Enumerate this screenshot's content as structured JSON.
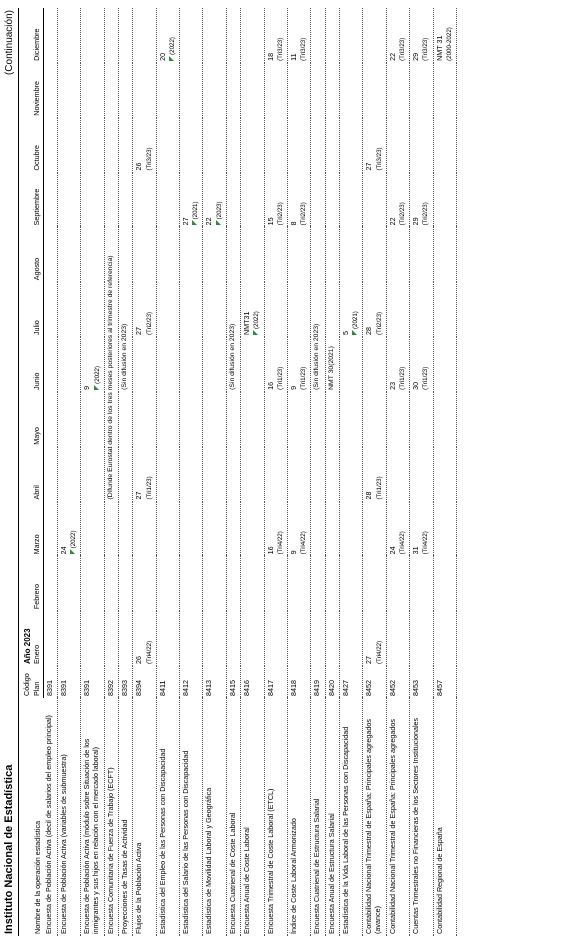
{
  "header": {
    "org": "Instituto Nacional de Estadística",
    "continuation": "(Continuación)"
  },
  "columns": {
    "name": "Nombre de la operación estadística",
    "code_line1": "Código",
    "code_line2": "Plan",
    "year": "Año 2023",
    "months": [
      "Enero",
      "Febrero",
      "Marzo",
      "Abril",
      "Mayo",
      "Junio",
      "Julio",
      "Agosto",
      "Septiembre",
      "Octubre",
      "Noviembre",
      "Diciembre"
    ]
  },
  "rows": [
    {
      "name": "Encuesta de Población Activa (decil de salarios del empleo principal)",
      "code": "8391",
      "cells": {}
    },
    {
      "name": "Encuesta de Población Activa (variables de submuestra)",
      "code": "8391",
      "cells": {
        "2": {
          "v": "24",
          "s": "(2022)",
          "m": true
        }
      }
    },
    {
      "name": "Encuesta de Población Activa (módulo sobre Situación de los inmigrantes y sus hijos en relación con el mercado laboral)",
      "code": "8391",
      "cells": {
        "5": {
          "v": "9",
          "s": "(2022)",
          "m": true
        }
      }
    },
    {
      "name": "Encuesta Comunitaria de Fuerza de Trabajo (ECFT)",
      "code": "8392",
      "span": {
        "from": 3,
        "to": 9,
        "text": "(Difunde Eurostat dentro de los tres meses posteriores al trimestre de referencia)"
      }
    },
    {
      "name": "Proyecciones de Tasas de Actividad",
      "code": "8393",
      "span": {
        "from": 5,
        "to": 6,
        "text": "(Sin difusión en 2023)"
      }
    },
    {
      "name": "Flujos de la Población Activa",
      "code": "8394",
      "cells": {
        "0": {
          "v": "26",
          "s": "(Tri4/22)"
        },
        "3": {
          "v": "27",
          "s": "(Tri1/23)"
        },
        "6": {
          "v": "27",
          "s": "(Tri2/23)"
        },
        "9": {
          "v": "26",
          "s": "(Tri3/23)"
        }
      }
    },
    {
      "name": "Estadística del Empleo de las Personas con Discapacidad",
      "code": "8411",
      "cells": {
        "11": {
          "v": "20",
          "s": "(2022)",
          "m": true
        }
      }
    },
    {
      "name": "Estadística del Salario de las Personas con Discapacidad",
      "code": "8412",
      "cells": {
        "8": {
          "v": "27",
          "s": "(2021)",
          "m": true
        }
      }
    },
    {
      "name": "Estadística de Movilidad Laboral y Geográfica",
      "code": "8413",
      "cells": {
        "8": {
          "v": "22",
          "s": "(2023)",
          "m": true
        }
      }
    },
    {
      "name": "Encuesta Cuatrienal de Coste Laboral",
      "code": "8415",
      "span": {
        "from": 5,
        "to": 6,
        "text": "(Sin difusión en 2023)"
      }
    },
    {
      "name": "Encuesta Anual de Coste Laboral",
      "code": "8416",
      "cells": {
        "6": {
          "v": "NMT31",
          "s": "(2022)",
          "m": true
        }
      }
    },
    {
      "name": "Encuesta Trimestral de Coste Laboral (ETCL)",
      "code": "8417",
      "cells": {
        "2": {
          "v": "16",
          "s": "(Tri4/22)"
        },
        "5": {
          "v": "16",
          "s": "(Tri1/23)"
        },
        "8": {
          "v": "15",
          "s": "(Tri2/23)"
        },
        "11": {
          "v": "18",
          "s": "(Tri3/23)"
        }
      }
    },
    {
      "name": "Índice de Coste Laboral Armonizado",
      "code": "8418",
      "cells": {
        "2": {
          "v": "9",
          "s": "(Tri4/22)"
        },
        "5": {
          "v": "9",
          "s": "(Tri1/23)"
        },
        "8": {
          "v": "8",
          "s": "(Tri2/23)"
        },
        "11": {
          "v": "11",
          "s": "(Tri3/23)"
        }
      }
    },
    {
      "name": "Encuesta Cuatrienal de Estructura Salarial",
      "code": "8419",
      "span": {
        "from": 5,
        "to": 6,
        "text": "(Sin difusión en 2023)"
      }
    },
    {
      "name": "Encuesta Anual de Estructura Salarial",
      "code": "8420",
      "span": {
        "from": 5,
        "to": 6,
        "text": "NMT 30(2021)"
      }
    },
    {
      "name": "Estadística de la Vida Laboral de las Personas con Discapacidad",
      "code": "8427",
      "cells": {
        "6": {
          "v": "5",
          "s": "(2021)",
          "m": true
        }
      }
    },
    {
      "name": "Contabilidad Nacional Trimestral de España: Principales agregados (avance)",
      "code": "8452",
      "cells": {
        "0": {
          "v": "27",
          "s": "(Tri4/22)"
        },
        "3": {
          "v": "28",
          "s": "(Tri1/23)"
        },
        "6": {
          "v": "28",
          "s": "(Tri2/23)"
        },
        "9": {
          "v": "27",
          "s": "(Tri3/23)"
        }
      }
    },
    {
      "name": "Contabilidad Nacional Trimestral de España: Principales agregados",
      "code": "8452",
      "cells": {
        "2": {
          "v": "24",
          "s": "(Tri4/22)"
        },
        "5": {
          "v": "23",
          "s": "(Tri1/23)"
        },
        "8": {
          "v": "22",
          "s": "(Tri2/23)"
        },
        "11": {
          "v": "22",
          "s": "(Tri3/23)"
        }
      }
    },
    {
      "name": "Cuentas Trimestrales no Financieras de los Sectores Institucionales",
      "code": "8453",
      "cells": {
        "2": {
          "v": "31",
          "s": "(Tri4/22)"
        },
        "5": {
          "v": "30",
          "s": "(Tri1/23)"
        },
        "8": {
          "v": "29",
          "s": "(Tri2/23)"
        },
        "11": {
          "v": "29",
          "s": "(Tri3/23)"
        }
      }
    },
    {
      "name": "Contabilidad Regional de España",
      "code": "8457",
      "cells": {
        "11": {
          "v": "NMT 31",
          "s": "(2000-2022)"
        }
      }
    }
  ]
}
